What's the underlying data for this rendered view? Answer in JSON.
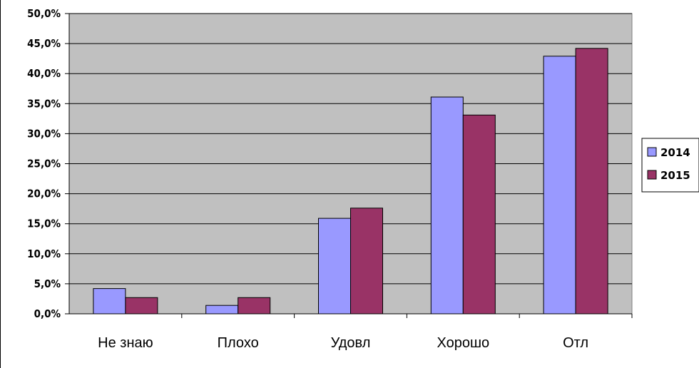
{
  "chart_data": {
    "type": "bar",
    "categories": [
      "Не знаю",
      "Плохо",
      "Удовл",
      "Хорошо",
      "Отл"
    ],
    "series": [
      {
        "name": "2014",
        "values": [
          4.2,
          1.4,
          15.9,
          36.1,
          42.9
        ],
        "color": "#9999FF"
      },
      {
        "name": "2015",
        "values": [
          2.7,
          2.7,
          17.6,
          33.1,
          44.2
        ],
        "color": "#993366"
      }
    ],
    "yticks": [
      "0,0%",
      "5,0%",
      "10,0%",
      "15,0%",
      "20,0%",
      "25,0%",
      "30,0%",
      "35,0%",
      "40,0%",
      "45,0%",
      "50,0%"
    ],
    "ylim": [
      0,
      50
    ],
    "grid": true,
    "legend_position": "right",
    "plot_background": "#C0C0C0"
  }
}
